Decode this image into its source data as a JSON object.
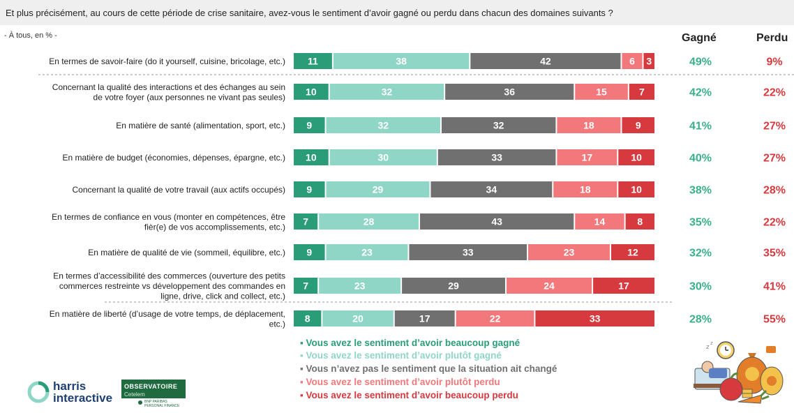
{
  "header": {
    "question": "Et plus précisément, au cours de cette période de crise sanitaire, avez-vous le sentiment d’avoir gagné ou perdu dans chacun des domaines suivants ?",
    "subtitle": "- À tous, en % -",
    "col_gagne": "Gagné",
    "col_perdu": "Perdu"
  },
  "colors": {
    "beaucoup_gagne": "#2a9d78",
    "plutot_gagne": "#8fd6c7",
    "pas_change": "#707070",
    "plutot_perdu": "#f2787b",
    "beaucoup_perdu": "#d63a3f",
    "gagne_text": "#3ab08a",
    "perdu_text": "#d63a3f"
  },
  "chart_data": {
    "type": "bar",
    "orientation": "horizontal",
    "stacked": true,
    "categories": [
      "En termes de savoir-faire (do it yourself, cuisine, bricolage, etc.)",
      "Concernant la qualité des interactions et des échanges au sein de votre foyer (aux personnes ne vivant pas seules)",
      "En matière de santé (alimentation, sport, etc.)",
      "En matière de budget (économies, dépenses, épargne, etc.)",
      "Concernant la qualité de votre travail (aux actifs occupés)",
      "En termes de confiance en vous (monter en compétences, être fier(e) de vos accomplissements, etc.)",
      "En matière de qualité de vie (sommeil, équilibre, etc.)",
      "En termes d’accessibilité des commerces (ouverture des petits commerces restreinte vs développement des commandes en ligne, drive, click and collect, etc.)",
      "En matière de liberté (d’usage de votre temps, de déplacement, etc.)"
    ],
    "label_lines": [
      [
        "En termes de savoir-faire (do it yourself, cuisine, bricolage, etc.)"
      ],
      [
        "Concernant la qualité des interactions et des échanges au sein",
        "de votre foyer (aux personnes ne vivant pas seules)"
      ],
      [
        "En matière de santé (alimentation, sport, etc.)"
      ],
      [
        "En matière de budget (économies, dépenses, épargne, etc.)"
      ],
      [
        "Concernant la qualité de votre travail (aux actifs occupés)"
      ],
      [
        "En termes de confiance en vous (monter en compétences, être",
        "fièr(e) de vos accomplissements, etc.)"
      ],
      [
        "En matière de qualité de vie (sommeil, équilibre, etc.)"
      ],
      [
        "En termes d’accessibilité des commerces (ouverture des petits",
        "commerces restreinte vs développement des commandes en",
        "ligne, drive, click and collect, etc.)"
      ],
      [
        "En matière de liberté (d’usage de votre temps, de déplacement,",
        "etc.)"
      ]
    ],
    "series": [
      {
        "name": "Vous avez le sentiment d’avoir beaucoup gagné",
        "values": [
          11,
          10,
          9,
          10,
          9,
          7,
          9,
          7,
          8
        ]
      },
      {
        "name": "Vous avez le sentiment d’avoir plutôt gagné",
        "values": [
          38,
          32,
          32,
          30,
          29,
          28,
          23,
          23,
          20
        ]
      },
      {
        "name": "Vous n’avez pas le sentiment que la situation ait changé",
        "values": [
          42,
          36,
          32,
          33,
          34,
          43,
          33,
          29,
          17
        ]
      },
      {
        "name": "Vous avez le sentiment d’avoir plutôt perdu",
        "values": [
          6,
          15,
          18,
          17,
          18,
          14,
          23,
          24,
          22
        ]
      },
      {
        "name": "Vous avez le sentiment d’avoir beaucoup perdu",
        "values": [
          3,
          7,
          9,
          10,
          10,
          8,
          12,
          17,
          33
        ]
      }
    ],
    "gagne_totals": [
      "49%",
      "42%",
      "41%",
      "40%",
      "38%",
      "35%",
      "32%",
      "30%",
      "28%"
    ],
    "perdu_totals": [
      "9%",
      "22%",
      "27%",
      "27%",
      "28%",
      "22%",
      "35%",
      "41%",
      "55%"
    ],
    "xlim": [
      0,
      100
    ],
    "legend_position": "bottom",
    "grid": false
  },
  "legend": [
    "Vous avez le sentiment d’avoir beaucoup gagné",
    "Vous avez le sentiment d’avoir plutôt gagné",
    "Vous n’avez pas le sentiment que la situation ait changé",
    "Vous avez le sentiment d’avoir plutôt perdu",
    "Vous avez le sentiment d’avoir beaucoup perdu"
  ],
  "logos": {
    "harris_line1": "harris",
    "harris_line2": "interactive",
    "observatoire": "OBSERVATOIRE",
    "cetelem": "Cetelem",
    "bnp": "BNP PARIBAS PERSONAL FINANCE"
  },
  "illustration_icons": [
    "sleep-clock-icon",
    "money-bags-icon",
    "apple-icon",
    "carrot-icon"
  ]
}
